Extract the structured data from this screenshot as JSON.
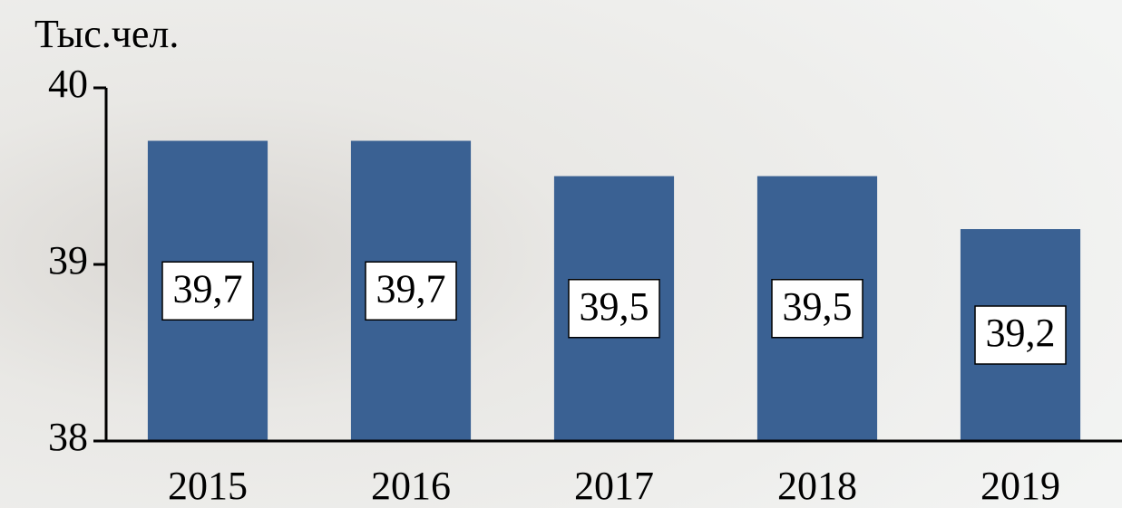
{
  "chart_data": {
    "type": "bar",
    "y_axis_label": "Тыс.чел.",
    "categories": [
      "2015",
      "2016",
      "2017",
      "2018",
      "2019"
    ],
    "values": [
      39.7,
      39.7,
      39.5,
      39.5,
      39.2
    ],
    "value_labels": [
      "39,7",
      "39,7",
      "39,5",
      "39,5",
      "39,2"
    ],
    "color": "#3a6193",
    "ylim": [
      38,
      40
    ],
    "yticks": [
      38,
      39,
      40
    ],
    "grid": false
  }
}
